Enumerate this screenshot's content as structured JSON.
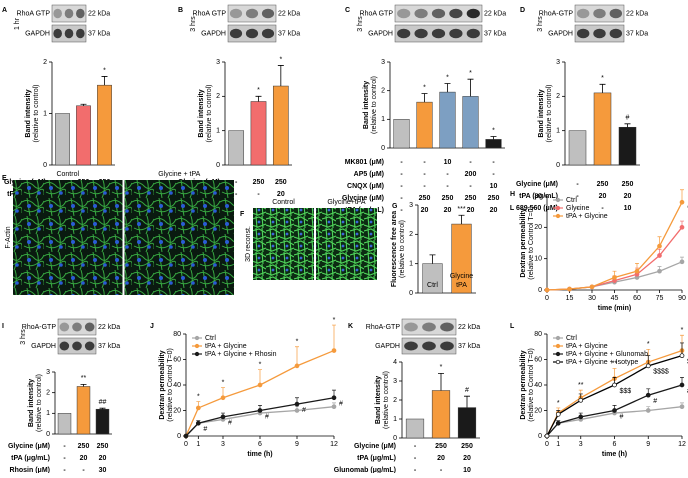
{
  "chart_data": [
    {
      "panel": "A",
      "type": "bar",
      "blot": {
        "time": "1 hr",
        "rows": [
          "RhoA GTP",
          "GAPDH"
        ],
        "sizes": [
          "22 kDa",
          "37 kDa"
        ]
      },
      "ylabel": "Band intensity",
      "ylabel_sub": "(relative to control)",
      "ylim": [
        0,
        2
      ],
      "yticks": [
        0,
        1,
        2
      ],
      "values": [
        1,
        1.15,
        1.55
      ],
      "errors": [
        null,
        0.03,
        0.17
      ],
      "colors": [
        "#bfbfbf",
        "#f26d6d",
        "#f59a3c"
      ],
      "marks": [
        null,
        null,
        "*"
      ],
      "conditions": [
        {
          "label": "Glycine (μM)",
          "values": [
            "-",
            "250",
            "250"
          ]
        },
        {
          "label": "tPA (μg/mL)",
          "values": [
            "-",
            "-",
            "20"
          ]
        }
      ]
    },
    {
      "panel": "B",
      "type": "bar",
      "blot": {
        "time": "3 hrs",
        "rows": [
          "RhoA GTP",
          "GAPDH"
        ],
        "sizes": [
          "22 kDa",
          "37 kDa"
        ]
      },
      "ylabel": "Band intensity",
      "ylabel_sub": "(relative to control)",
      "ylim": [
        0,
        3
      ],
      "yticks": [
        0,
        1,
        2,
        3
      ],
      "values": [
        1,
        1.85,
        2.3
      ],
      "errors": [
        null,
        0.15,
        0.6
      ],
      "colors": [
        "#bfbfbf",
        "#f26d6d",
        "#f59a3c"
      ],
      "marks": [
        null,
        "*",
        "*"
      ],
      "conditions": [
        {
          "label": "Glycine (μM)",
          "values": [
            "-",
            "250",
            "250"
          ]
        },
        {
          "label": "tPA (μg/mL)",
          "values": [
            "-",
            "-",
            "20"
          ]
        }
      ]
    },
    {
      "panel": "C",
      "type": "bar",
      "blot": {
        "time": "3 hrs",
        "rows": [
          "RhoA GTP",
          "GAPDH"
        ],
        "sizes": [
          "22 kDa",
          "37 kDa"
        ]
      },
      "ylabel": "Band intensity",
      "ylabel_sub": "(relative to control)",
      "ylim": [
        0,
        3
      ],
      "yticks": [
        0,
        1,
        2,
        3
      ],
      "values": [
        1,
        1.6,
        1.95,
        1.8,
        0.3
      ],
      "errors": [
        null,
        0.3,
        0.3,
        0.6,
        0.1
      ],
      "colors": [
        "#bfbfbf",
        "#f59a3c",
        "#7d9fc2",
        "#7d9fc2",
        "#1a1a1a"
      ],
      "marks": [
        null,
        "*",
        "*",
        "*",
        "*"
      ],
      "conditions": [
        {
          "label": "MK801 (μM)",
          "values": [
            "-",
            "-",
            "10",
            "-",
            "-"
          ]
        },
        {
          "label": "AP5 (μM)",
          "values": [
            "-",
            "-",
            "-",
            "200",
            "-"
          ]
        },
        {
          "label": "CNQX (μM)",
          "values": [
            "-",
            "-",
            "-",
            "-",
            "10"
          ]
        },
        {
          "label": "Glycine (μM)",
          "values": [
            "-",
            "250",
            "250",
            "250",
            "250"
          ]
        },
        {
          "label": "tPA (μg/mL)",
          "values": [
            "-",
            "20",
            "20",
            "20",
            "20"
          ]
        }
      ]
    },
    {
      "panel": "D",
      "type": "bar",
      "blot": {
        "time": "3 hrs",
        "rows": [
          "RhoA-GTP",
          "GAPDH"
        ],
        "sizes": [
          "22 kDa",
          "37 kDa"
        ]
      },
      "ylabel": "Band intensity",
      "ylabel_sub": "(relative to control)",
      "ylim": [
        0,
        3
      ],
      "yticks": [
        0,
        1,
        2,
        3
      ],
      "values": [
        1,
        2.1,
        1.1
      ],
      "errors": [
        null,
        0.25,
        0.1
      ],
      "colors": [
        "#bfbfbf",
        "#f59a3c",
        "#1a1a1a"
      ],
      "marks": [
        null,
        "*",
        "#"
      ],
      "conditions": [
        {
          "label": "Glycine (μM)",
          "values": [
            "-",
            "250",
            "250"
          ]
        },
        {
          "label": "tPA (μg/mL)",
          "values": [
            "-",
            "20",
            "20"
          ]
        },
        {
          "label": "L 689,560 (μM)",
          "values": [
            "-",
            "-",
            "10"
          ]
        }
      ]
    },
    {
      "panel": "E",
      "type": "image",
      "labels": [
        "Control",
        "Glycine + tPA"
      ],
      "side_label": "F-Actin"
    },
    {
      "panel": "F",
      "type": "image",
      "labels": [
        "Control",
        "Glycine+tPA"
      ],
      "side_label": "3D reconst."
    },
    {
      "panel": "G",
      "type": "bar",
      "ylabel": "Fluorescence free area",
      "ylabel_sub": "(relative to control)",
      "ylim": [
        0,
        3
      ],
      "yticks": [
        0,
        1,
        2,
        3
      ],
      "categories": [
        [
          "Ctrl"
        ],
        [
          "Glycine",
          "tPA"
        ]
      ],
      "values": [
        1,
        2.35
      ],
      "errors": [
        0.3,
        0.3
      ],
      "colors": [
        "#bfbfbf",
        "#f59a3c"
      ],
      "marks": [
        null,
        "***"
      ]
    },
    {
      "panel": "H",
      "type": "line",
      "ylabel": "Dextran permeability",
      "ylabel_sub": "(relative to Control T=0)",
      "xlabel": "time (min)",
      "x": [
        0,
        15,
        30,
        45,
        60,
        75,
        90
      ],
      "xlim": [
        0,
        90
      ],
      "xticks": [
        0,
        15,
        30,
        45,
        60,
        75,
        90
      ],
      "ylim": [
        0,
        30
      ],
      "yticks": [
        0,
        10,
        20,
        30
      ],
      "series": [
        {
          "name": "Ctrl",
          "color": "#a6a6a6",
          "values": [
            0,
            0.3,
            1,
            2.5,
            4,
            6,
            9
          ],
          "errors": [
            null,
            null,
            null,
            1,
            1,
            1.5,
            1.5
          ],
          "markers": [
            null,
            null,
            null,
            null,
            null,
            null,
            null
          ]
        },
        {
          "name": "Glycine",
          "color": "#f26d6d",
          "values": [
            0,
            0.3,
            1,
            3,
            5,
            11,
            20
          ],
          "errors": [
            null,
            null,
            null,
            1.5,
            2,
            2,
            2
          ],
          "markers": [
            null,
            null,
            null,
            null,
            null,
            null,
            null
          ]
        },
        {
          "name": "tPA + Glycine",
          "color": "#f59a3c",
          "values": [
            0,
            0.3,
            1,
            4,
            6,
            14,
            28
          ],
          "errors": [
            null,
            null,
            null,
            2,
            2.5,
            3,
            4
          ],
          "markers": [
            null,
            null,
            null,
            null,
            null,
            null,
            "*"
          ]
        }
      ]
    },
    {
      "panel": "I",
      "type": "bar",
      "blot": {
        "time": "3 hrs",
        "rows": [
          "RhoA-GTP",
          "GAPDH"
        ],
        "sizes": [
          "22 kDa",
          "37 kDa"
        ]
      },
      "ylabel": "Band intensity",
      "ylabel_sub": "(relative to control)",
      "ylim": [
        0,
        3
      ],
      "yticks": [
        0,
        1,
        2,
        3
      ],
      "values": [
        1,
        2.3,
        1.2
      ],
      "errors": [
        null,
        0.1,
        0.05
      ],
      "colors": [
        "#bfbfbf",
        "#f59a3c",
        "#1a1a1a"
      ],
      "marks": [
        null,
        "**",
        "##"
      ],
      "conditions": [
        {
          "label": "Glycine (μM)",
          "values": [
            "-",
            "250",
            "250"
          ]
        },
        {
          "label": "tPA (μg/mL)",
          "values": [
            "-",
            "20",
            "20"
          ]
        },
        {
          "label": "Rhosin (μM)",
          "values": [
            "-",
            "-",
            "30"
          ]
        }
      ]
    },
    {
      "panel": "J",
      "type": "line",
      "ylabel": "Dextran permeability",
      "ylabel_sub": "(relative to Control T=0)",
      "xlabel": "time (h)",
      "x": [
        0,
        1,
        3,
        6,
        9,
        12
      ],
      "xlim": [
        0,
        12
      ],
      "xticks": [
        0,
        1,
        3,
        6,
        9,
        12
      ],
      "ylim": [
        0,
        80
      ],
      "yticks": [
        0,
        20,
        40,
        60,
        80
      ],
      "series": [
        {
          "name": "Ctrl",
          "color": "#a6a6a6",
          "values": [
            0,
            10,
            13,
            18,
            20,
            23
          ],
          "errors": [
            null,
            2,
            2,
            3,
            3,
            3
          ],
          "markers": [
            null,
            null,
            null,
            null,
            null,
            null
          ]
        },
        {
          "name": "tPA + Glycine",
          "color": "#f59a3c",
          "values": [
            0,
            22,
            30,
            40,
            55,
            67
          ],
          "errors": [
            null,
            5,
            8,
            12,
            15,
            20
          ],
          "markers": [
            null,
            "*",
            "*",
            "*",
            "*",
            "*"
          ]
        },
        {
          "name": "tPA + Glycine + Rhosin",
          "color": "#1a1a1a",
          "values": [
            0,
            10,
            15,
            20,
            25,
            30
          ],
          "errors": [
            null,
            2,
            3,
            4,
            5,
            6
          ],
          "markers": [
            null,
            "#",
            "#",
            "#",
            "#",
            "#"
          ]
        }
      ]
    },
    {
      "panel": "K",
      "type": "bar",
      "blot": {
        "rows": [
          "RhoA-GTP",
          "GAPDH"
        ],
        "sizes": [
          "22 kDa",
          "37 kDa"
        ]
      },
      "ylabel": "Band intensity",
      "ylabel_sub": "(relative to control)",
      "ylim": [
        0,
        4
      ],
      "yticks": [
        0,
        1,
        2,
        3,
        4
      ],
      "values": [
        1,
        2.5,
        1.6
      ],
      "errors": [
        null,
        0.9,
        0.6
      ],
      "colors": [
        "#bfbfbf",
        "#f59a3c",
        "#1a1a1a"
      ],
      "marks": [
        null,
        "*",
        "#"
      ],
      "conditions": [
        {
          "label": "Glycine (μM)",
          "values": [
            "-",
            "250",
            "250"
          ]
        },
        {
          "label": "tPA (μg/mL)",
          "values": [
            "-",
            "20",
            "20"
          ]
        },
        {
          "label": "Glunomab (μg/mL)",
          "values": [
            "-",
            "-",
            "10"
          ]
        }
      ]
    },
    {
      "panel": "L",
      "type": "line",
      "ylabel": "Dextran permeability",
      "ylabel_sub": "(relative to Control T=0)",
      "xlabel": "time (h)",
      "x": [
        0,
        1,
        3,
        6,
        9,
        12
      ],
      "xlim": [
        0,
        12
      ],
      "xticks": [
        0,
        1,
        3,
        6,
        9,
        12
      ],
      "ylim": [
        0,
        80
      ],
      "yticks": [
        0,
        20,
        40,
        60,
        80
      ],
      "series": [
        {
          "name": "Ctrl",
          "color": "#a6a6a6",
          "values": [
            0,
            10,
            13,
            18,
            20,
            23
          ],
          "errors": [
            null,
            2,
            2,
            3,
            3,
            3
          ],
          "markers": [
            null,
            null,
            null,
            null,
            null,
            null
          ]
        },
        {
          "name": "tPA + Glycine",
          "color": "#f59a3c",
          "values": [
            0,
            18,
            30,
            45,
            58,
            67
          ],
          "errors": [
            null,
            4,
            6,
            8,
            10,
            12
          ],
          "markers": [
            null,
            "*",
            "**",
            "**",
            "*",
            "*"
          ]
        },
        {
          "name": "tPA + Glycine + Glunomab",
          "color": "#1a1a1a",
          "values": [
            0,
            10,
            15,
            20,
            32,
            40
          ],
          "errors": [
            null,
            2,
            3,
            4,
            5,
            6
          ],
          "markers": [
            null,
            null,
            null,
            "#",
            "#",
            "#"
          ]
        },
        {
          "name": "tPA + Glycine + Isotype",
          "color": "#ffffff",
          "values": [
            0,
            17,
            28,
            40,
            55,
            63
          ],
          "errors": [
            null,
            3,
            5,
            6,
            8,
            10
          ],
          "markers": [
            null,
            null,
            null,
            "$$$",
            "$$$$",
            "$$"
          ]
        }
      ]
    }
  ]
}
